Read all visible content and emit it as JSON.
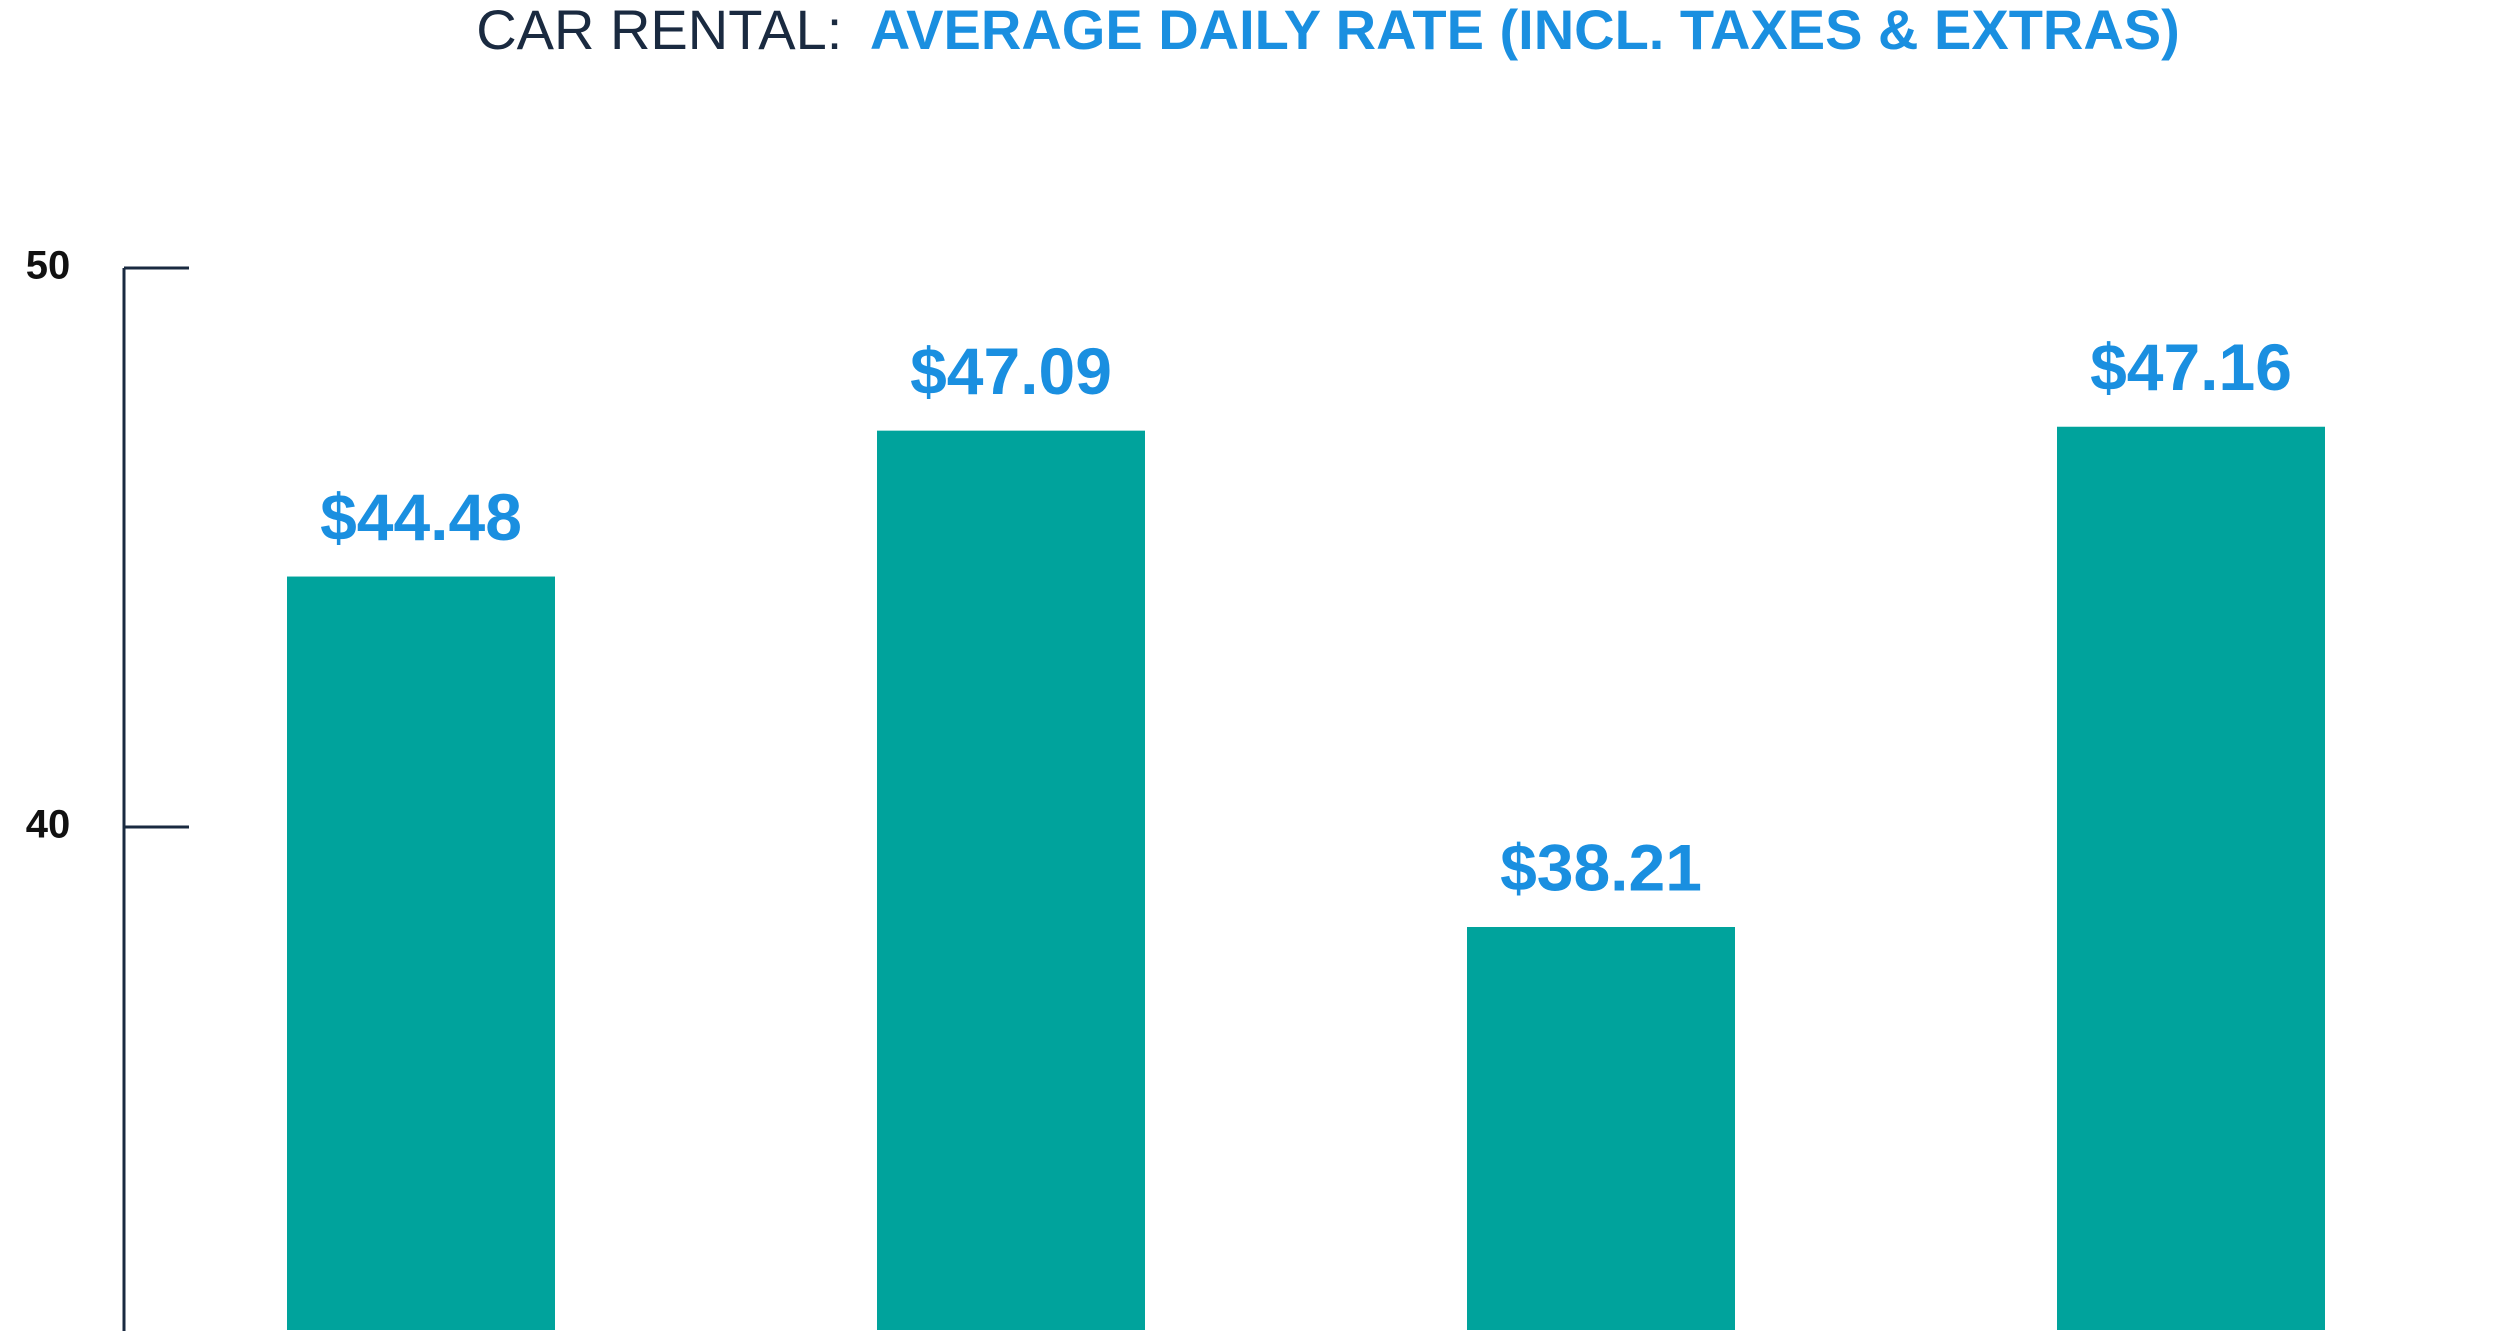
{
  "chart_data": {
    "type": "bar",
    "title": {
      "prefix": "CAR RENTAL:",
      "main": "AVERAGE DAILY RATE (INCL. TAXES & EXTRAS)"
    },
    "categories": [
      null,
      null,
      null,
      null
    ],
    "values": [
      44.48,
      47.09,
      38.21,
      47.16
    ],
    "value_labels": [
      "$44.48",
      "$47.09",
      "$38.21",
      "$47.16"
    ],
    "color": "#00a39c",
    "label_color": "#1a8fe0",
    "ylim": [
      31,
      50
    ],
    "yticks": [
      40,
      50
    ],
    "grid": false
  }
}
